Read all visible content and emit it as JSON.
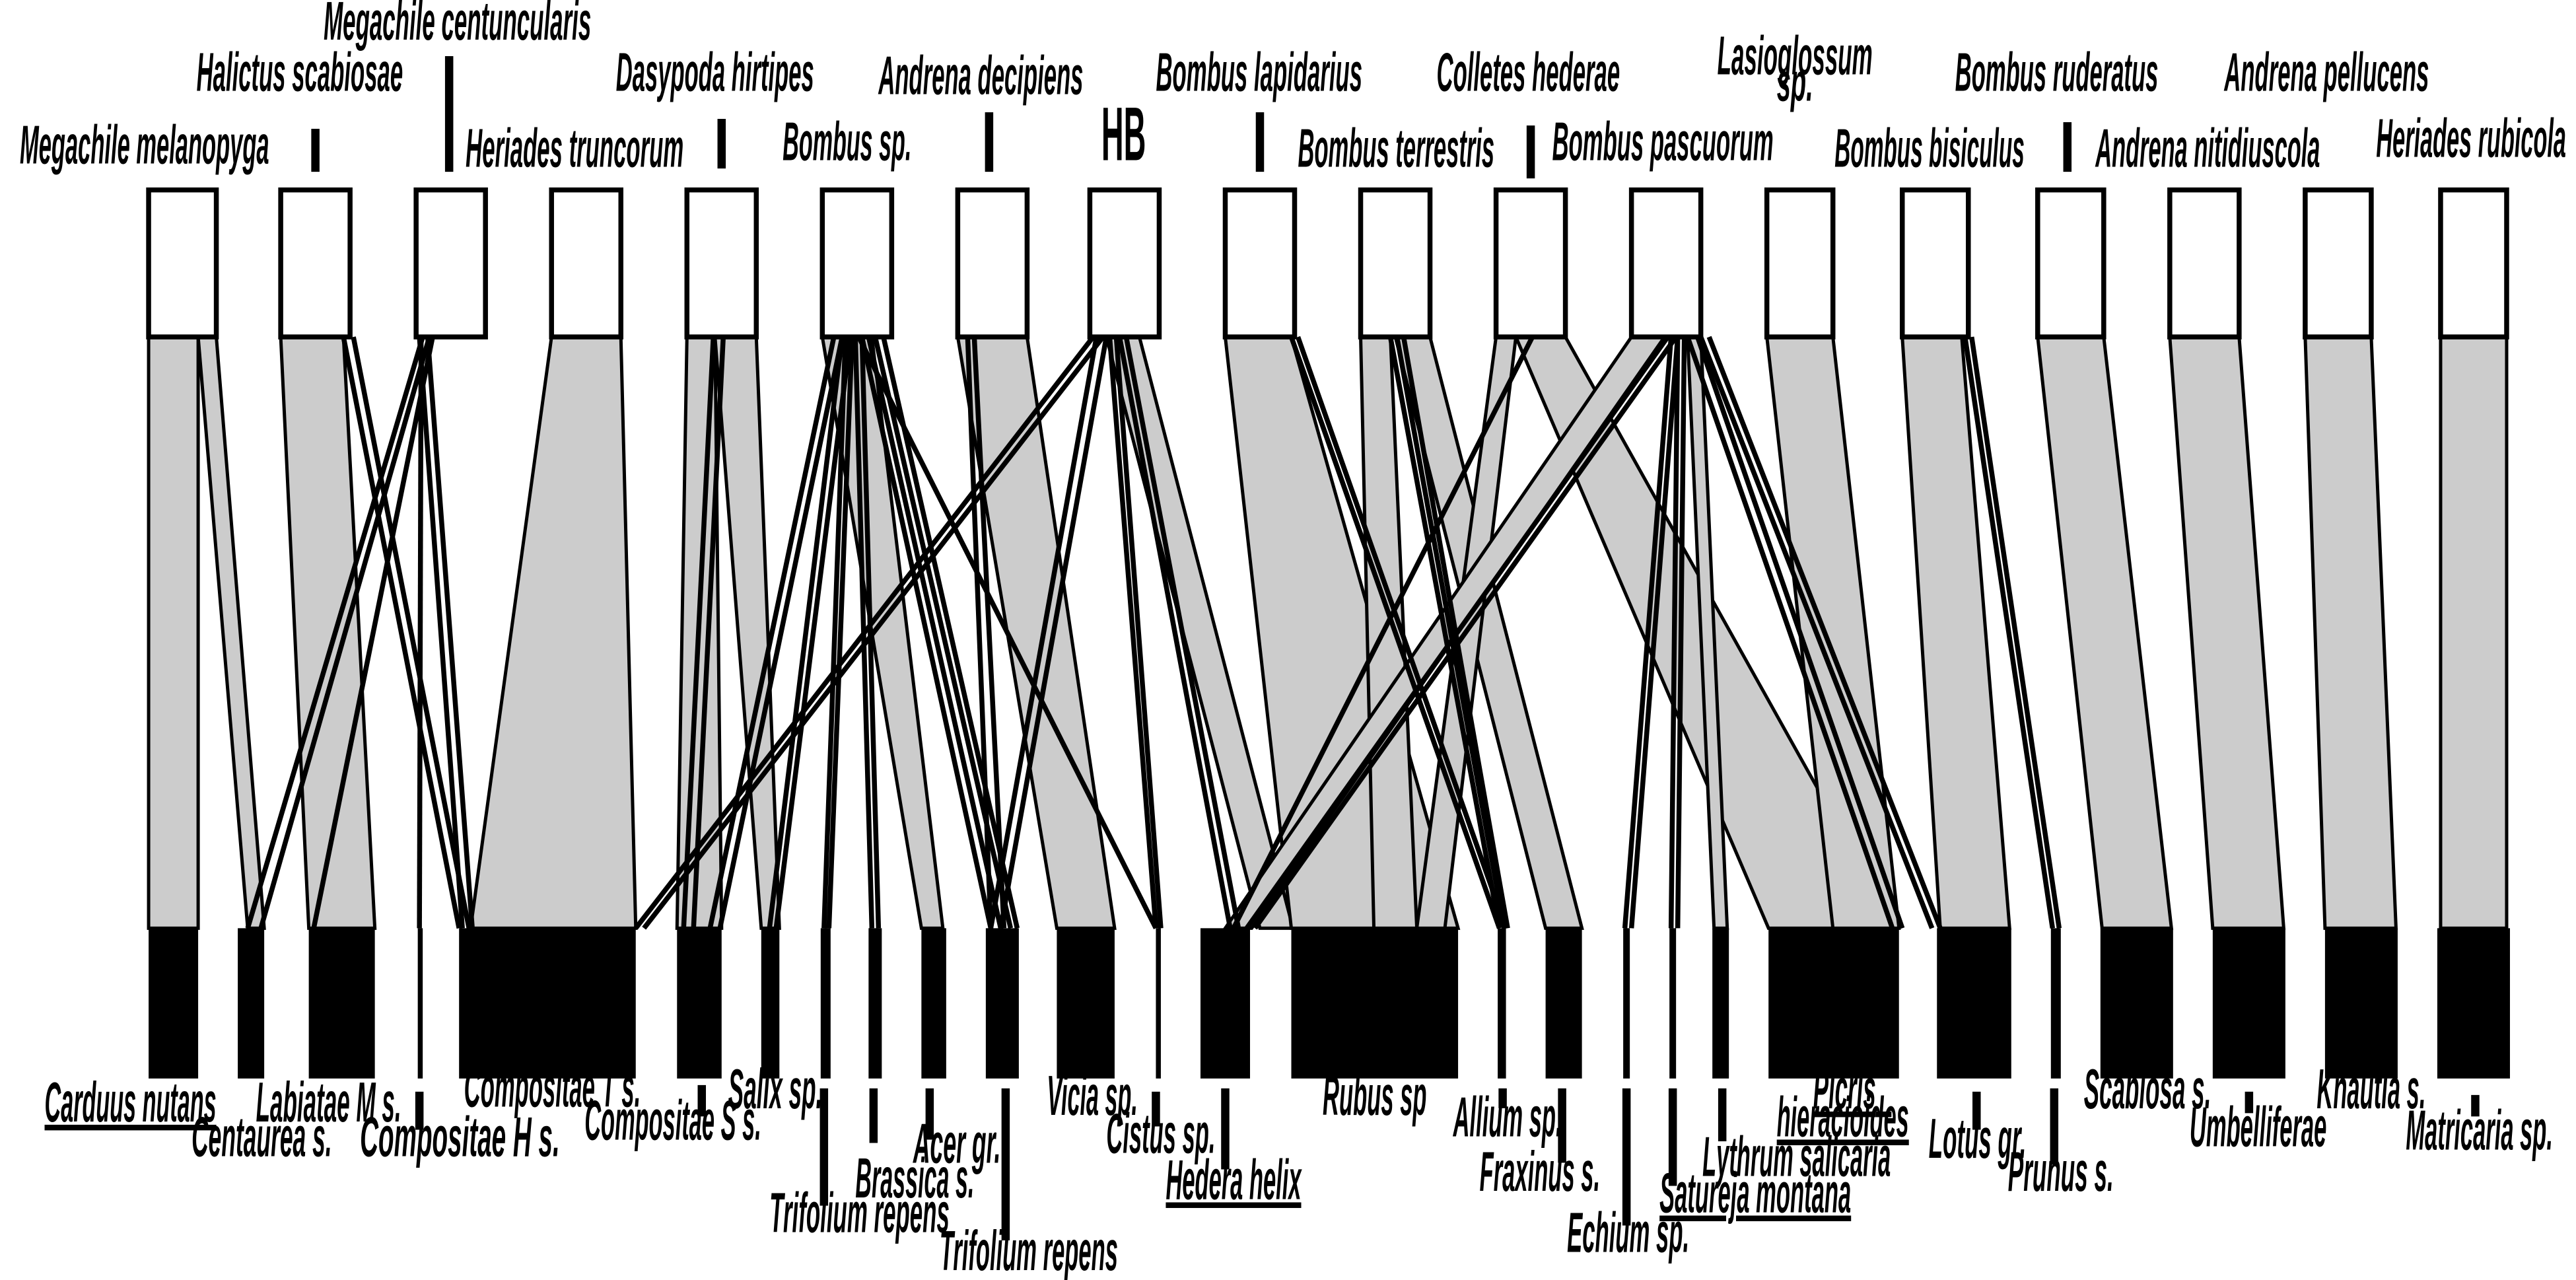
{
  "pollinators": [
    "Megachile melanopyga",
    "Halictus scabiosae",
    "Megachile centuncularis",
    "Heriades truncorum",
    "Dasypoda hirtipes",
    "Bombus sp.",
    "Andrena decipiens",
    "HB",
    "Bombus lapidarius",
    "Bombus terrestris",
    "Colletes hederae",
    "Bombus pascuorum",
    "Lasioglossum sp.",
    "Bombus bisiculus",
    "Bombus ruderatus",
    "Andrena nitidiuscola",
    "Andrena pellucens",
    "Heriades rubicola"
  ],
  "plants": [
    "Carduus nutans",
    "Centaurea s.",
    "Labiatae M s.",
    "Compositae H s.",
    "Compositae T s.",
    "Compositae S s.",
    "Salix sp.",
    "Trifolium repens",
    "Brassica s.",
    "Acer gr.",
    "Trifolium repens",
    "Vicia sp.",
    "Cistus sp.",
    "Hedera helix",
    "Rubus sp",
    "Allium sp.",
    "Fraxinus s.",
    "Echium sp.",
    "Satureja montana",
    "Lythrum salicaria",
    "Picris hieracioides",
    "Lotus gr.",
    "Prunus s.",
    "Scabiosa s.",
    "Umbelliferae",
    "Knautia s.",
    "Matricaria sp."
  ],
  "colors": {
    "upper_box": "#ffffff",
    "lower_box": "#000000",
    "interaction_band": "#cccccc",
    "outline": "#000000"
  }
}
